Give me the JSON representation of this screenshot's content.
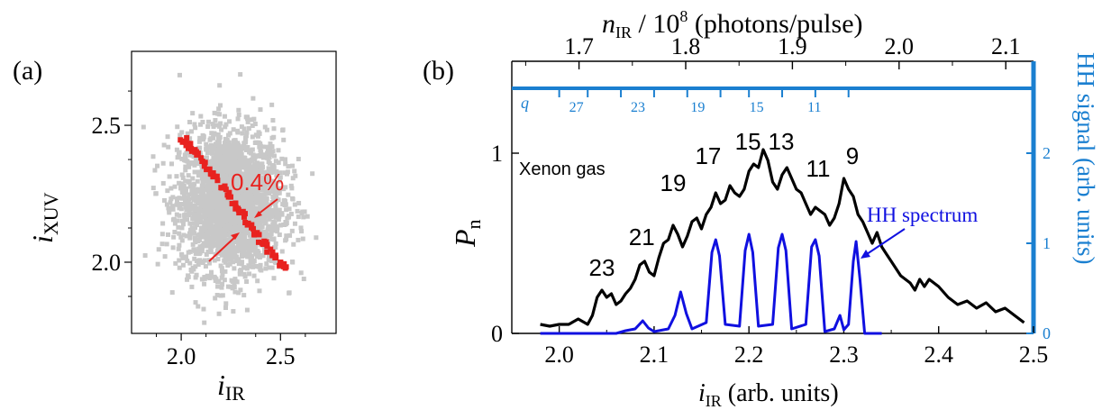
{
  "colors": {
    "scatter_all": "#c8c8c8",
    "scatter_selected": "#e8221f",
    "black_trace": "#000000",
    "hh_spectrum": "#1010e0",
    "right_axis": "#1a7fd0"
  },
  "chart_data": [
    {
      "type": "scatter",
      "panel_label": "(a)",
      "xlabel_main": "i",
      "xlabel_sub": "IR",
      "ylabel_main": "i",
      "ylabel_sub": "XUV",
      "xlim": [
        1.75,
        2.78
      ],
      "ylim": [
        1.74,
        2.77
      ],
      "xticks": [
        2.0,
        2.5
      ],
      "xtick_labels": [
        "2.0",
        "2.5"
      ],
      "yticks": [
        2.0,
        2.5
      ],
      "ytick_labels": [
        "2.0",
        "2.5"
      ],
      "annotation": "0.4%",
      "series": [
        {
          "role": "all shots (gray)",
          "cloud_center": [
            2.25,
            2.22
          ],
          "cloud_spread": [
            0.13,
            0.13
          ],
          "x_range": [
            1.8,
            2.7
          ],
          "y_range": [
            1.75,
            2.75
          ]
        },
        {
          "role": "selected shots (red)",
          "x": [
            2.0,
            2.03,
            2.06,
            2.1,
            2.14,
            2.18,
            2.22,
            2.26,
            2.3,
            2.34,
            2.38,
            2.42,
            2.46,
            2.5,
            2.53
          ],
          "y": [
            2.46,
            2.44,
            2.41,
            2.38,
            2.34,
            2.3,
            2.26,
            2.22,
            2.18,
            2.14,
            2.1,
            2.06,
            2.03,
            1.99,
            1.97
          ]
        }
      ]
    },
    {
      "type": "line",
      "panel_label": "(b)",
      "xlabel_main": "i",
      "xlabel_sub": "IR",
      "xlabel_rest": " (arb. units)",
      "ylabel_main": "P",
      "ylabel_sub": "n",
      "ylabel_right": "HH signal (arb. units)",
      "top_label_main": "n",
      "top_label_sub": "IR",
      "top_label_rest": " / 10",
      "top_label_sup": "8",
      "top_label_tail": " (photons/pulse)",
      "xlim": [
        1.95,
        2.5
      ],
      "ylim": [
        0,
        1.45
      ],
      "xticks": [
        2.0,
        2.1,
        2.2,
        2.3,
        2.4,
        2.5
      ],
      "xtick_labels": [
        "2.0",
        "2.1",
        "2.2",
        "2.3",
        "2.4",
        "2.5"
      ],
      "yticks": [
        0,
        1
      ],
      "ytick_labels": [
        "0",
        "1"
      ],
      "y2lim": [
        0,
        2.9
      ],
      "y2ticks": [
        0,
        1,
        2
      ],
      "y2tick_labels": [
        "0",
        "1",
        "2"
      ],
      "top_xlim": [
        1.637,
        2.126
      ],
      "top_xticks": [
        1.7,
        1.8,
        1.9,
        2.0,
        2.1
      ],
      "top_xtick_labels": [
        "1.7",
        "1.8",
        "1.9",
        "2.0",
        "2.1"
      ],
      "q_label": "q",
      "q_ticks_x": [
        2.0,
        2.03,
        2.065,
        2.1,
        2.135,
        2.17,
        2.2,
        2.235,
        2.27,
        2.305
      ],
      "q_numbers": [
        {
          "q": "27",
          "x": 2.018
        },
        {
          "q": "23",
          "x": 2.083
        },
        {
          "q": "19",
          "x": 2.146
        },
        {
          "q": "15",
          "x": 2.208
        },
        {
          "q": "11",
          "x": 2.269
        }
      ],
      "gas_label": "Xenon gas",
      "hh_label": "HH spectrum",
      "peak_labels": [
        {
          "q": "23",
          "x": 2.045,
          "y": 0.29
        },
        {
          "q": "21",
          "x": 2.087,
          "y": 0.46
        },
        {
          "q": "19",
          "x": 2.12,
          "y": 0.76
        },
        {
          "q": "17",
          "x": 2.157,
          "y": 0.91
        },
        {
          "q": "15",
          "x": 2.199,
          "y": 0.99
        },
        {
          "q": "13",
          "x": 2.234,
          "y": 0.99
        },
        {
          "q": "11",
          "x": 2.273,
          "y": 0.84
        },
        {
          "q": "9",
          "x": 2.309,
          "y": 0.91
        }
      ],
      "series": [
        {
          "role": "P_n (black)",
          "x": [
            1.98,
            1.99,
            2.0,
            2.01,
            2.02,
            2.03,
            2.035,
            2.04,
            2.045,
            2.05,
            2.055,
            2.06,
            2.065,
            2.07,
            2.075,
            2.08,
            2.085,
            2.09,
            2.095,
            2.1,
            2.105,
            2.11,
            2.115,
            2.12,
            2.125,
            2.13,
            2.135,
            2.14,
            2.145,
            2.15,
            2.155,
            2.16,
            2.165,
            2.17,
            2.175,
            2.18,
            2.185,
            2.19,
            2.195,
            2.2,
            2.205,
            2.21,
            2.215,
            2.22,
            2.225,
            2.23,
            2.235,
            2.24,
            2.245,
            2.25,
            2.255,
            2.26,
            2.265,
            2.27,
            2.275,
            2.28,
            2.285,
            2.29,
            2.295,
            2.3,
            2.305,
            2.31,
            2.315,
            2.32,
            2.325,
            2.33,
            2.335,
            2.34,
            2.345,
            2.35,
            2.36,
            2.37,
            2.375,
            2.38,
            2.385,
            2.39,
            2.4,
            2.41,
            2.42,
            2.43,
            2.44,
            2.45,
            2.46,
            2.47,
            2.48,
            2.49
          ],
          "y": [
            0.05,
            0.04,
            0.05,
            0.05,
            0.08,
            0.05,
            0.1,
            0.2,
            0.24,
            0.2,
            0.22,
            0.16,
            0.18,
            0.22,
            0.25,
            0.3,
            0.38,
            0.4,
            0.34,
            0.32,
            0.42,
            0.5,
            0.52,
            0.6,
            0.55,
            0.48,
            0.54,
            0.62,
            0.64,
            0.58,
            0.66,
            0.7,
            0.78,
            0.72,
            0.74,
            0.82,
            0.78,
            0.76,
            0.8,
            0.9,
            0.94,
            0.92,
            1.02,
            0.96,
            0.84,
            0.8,
            0.88,
            0.92,
            0.86,
            0.8,
            0.78,
            0.72,
            0.66,
            0.7,
            0.68,
            0.66,
            0.6,
            0.64,
            0.72,
            0.86,
            0.8,
            0.76,
            0.66,
            0.62,
            0.56,
            0.5,
            0.56,
            0.48,
            0.44,
            0.4,
            0.32,
            0.28,
            0.24,
            0.3,
            0.26,
            0.3,
            0.26,
            0.2,
            0.16,
            0.18,
            0.14,
            0.17,
            0.12,
            0.14,
            0.1,
            0.06
          ]
        },
        {
          "role": "HH spectrum (blue)",
          "axis": "right",
          "x": [
            1.98,
            2.06,
            2.07,
            2.08,
            2.088,
            2.094,
            2.1,
            2.115,
            2.122,
            2.128,
            2.134,
            2.14,
            2.155,
            2.161,
            2.165,
            2.169,
            2.175,
            2.19,
            2.196,
            2.2,
            2.204,
            2.21,
            2.225,
            2.231,
            2.235,
            2.239,
            2.245,
            2.26,
            2.266,
            2.27,
            2.274,
            2.28,
            2.29,
            2.296,
            2.3,
            2.305,
            2.31,
            2.313,
            2.317,
            2.322,
            2.34
          ],
          "y": [
            0.0,
            0.0,
            0.03,
            0.05,
            0.14,
            0.06,
            0.02,
            0.05,
            0.2,
            0.46,
            0.22,
            0.05,
            0.12,
            0.9,
            1.04,
            0.86,
            0.1,
            0.08,
            0.92,
            1.1,
            0.9,
            0.08,
            0.1,
            0.95,
            1.1,
            0.92,
            0.05,
            0.1,
            0.96,
            1.04,
            0.86,
            0.02,
            0.05,
            0.2,
            0.04,
            0.1,
            0.8,
            1.02,
            0.6,
            0.0,
            0.0
          ]
        }
      ]
    }
  ]
}
